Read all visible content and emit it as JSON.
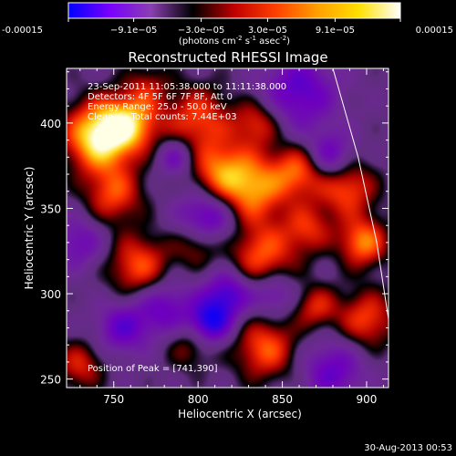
{
  "colorbar": {
    "ticks": [
      "-0.00015",
      "−9.1e−05",
      "−3.0e−05",
      "3.0e−05",
      "9.1e−05",
      "0.00015"
    ],
    "tick_values": [
      -0.00015,
      -9.1e-05,
      -3e-05,
      3e-05,
      9.1e-05,
      0.00015
    ],
    "range": [
      -0.00015,
      0.00015
    ],
    "units_main": "(photons cm",
    "units_exp1": "-2",
    "units_mid": " s",
    "units_exp2": "-1",
    "units_mid2": " asec",
    "units_exp3": "-2",
    "units_end": ")",
    "colors": [
      "#0000ff",
      "#7a00ff",
      "#8a3fb0",
      "#000000",
      "#c00000",
      "#ff4000",
      "#ff9f00",
      "#ffe000",
      "#ffffff"
    ]
  },
  "chart_data": {
    "type": "heatmap",
    "title": "Reconstructed RHESSI Image",
    "xlabel": "Heliocentric X (arcsec)",
    "ylabel": "Heliocentric Y (arcsec)",
    "xlim": [
      722,
      913
    ],
    "ylim": [
      245,
      432
    ],
    "xticks": [
      750,
      800,
      850,
      900
    ],
    "yticks": [
      250,
      300,
      350,
      400
    ],
    "annotations": [
      "23-Sep-2011 11:05:38.000 to 11:11:38.000",
      "Detectors: 4F 5F 6F 7F 8F, Att 0",
      "Energy Range: 25.0 - 50.0 keV",
      "Clean      Total counts: 7.44E+03"
    ],
    "peak_label": "Position of Peak = [741,390]",
    "peak_position": [
      741,
      390
    ],
    "limb_curve": [
      [
        880,
        432
      ],
      [
        895,
        380
      ],
      [
        906,
        330
      ],
      [
        913,
        285
      ]
    ],
    "blobs": [
      {
        "x": 741,
        "y": 392,
        "r": 14,
        "v": 1.0
      },
      {
        "x": 760,
        "y": 400,
        "r": 12,
        "v": 0.7
      },
      {
        "x": 800,
        "y": 402,
        "r": 14,
        "v": 0.55
      },
      {
        "x": 835,
        "y": 400,
        "r": 10,
        "v": 0.5
      },
      {
        "x": 750,
        "y": 358,
        "r": 12,
        "v": 0.55
      },
      {
        "x": 812,
        "y": 372,
        "r": 12,
        "v": 0.55
      },
      {
        "x": 832,
        "y": 362,
        "r": 14,
        "v": 0.75
      },
      {
        "x": 860,
        "y": 372,
        "r": 11,
        "v": 0.6
      },
      {
        "x": 888,
        "y": 362,
        "r": 12,
        "v": 0.6
      },
      {
        "x": 898,
        "y": 330,
        "r": 10,
        "v": 0.7
      },
      {
        "x": 765,
        "y": 316,
        "r": 13,
        "v": 0.6
      },
      {
        "x": 800,
        "y": 330,
        "r": 10,
        "v": 0.5
      },
      {
        "x": 838,
        "y": 322,
        "r": 14,
        "v": 0.6
      },
      {
        "x": 865,
        "y": 338,
        "r": 10,
        "v": 0.45
      },
      {
        "x": 900,
        "y": 285,
        "r": 12,
        "v": 0.55
      },
      {
        "x": 840,
        "y": 268,
        "r": 13,
        "v": 0.6
      },
      {
        "x": 795,
        "y": 270,
        "r": 10,
        "v": 0.35
      },
      {
        "x": 730,
        "y": 258,
        "r": 10,
        "v": 0.45
      },
      {
        "x": 870,
        "y": 292,
        "r": 9,
        "v": 0.45
      },
      {
        "x": 770,
        "y": 422,
        "r": 9,
        "v": 0.3
      },
      {
        "x": 805,
        "y": 343,
        "r": 12,
        "v": -0.7
      },
      {
        "x": 818,
        "y": 300,
        "r": 10,
        "v": -0.65
      },
      {
        "x": 807,
        "y": 283,
        "r": 9,
        "v": -0.8
      },
      {
        "x": 780,
        "y": 292,
        "r": 12,
        "v": -0.5
      },
      {
        "x": 860,
        "y": 418,
        "r": 16,
        "v": -0.55
      },
      {
        "x": 878,
        "y": 380,
        "r": 10,
        "v": -0.55
      },
      {
        "x": 755,
        "y": 280,
        "r": 11,
        "v": -0.5
      },
      {
        "x": 880,
        "y": 255,
        "r": 13,
        "v": -0.5
      },
      {
        "x": 845,
        "y": 300,
        "r": 9,
        "v": -0.45
      },
      {
        "x": 730,
        "y": 330,
        "r": 11,
        "v": -0.4
      },
      {
        "x": 787,
        "y": 380,
        "r": 8,
        "v": -0.45
      }
    ]
  },
  "footer": {
    "timestamp": "30-Aug-2013 00:53"
  }
}
